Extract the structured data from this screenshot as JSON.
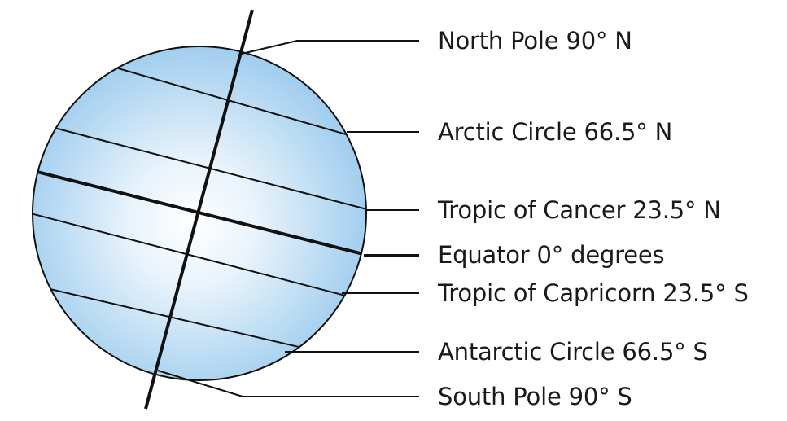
{
  "labels": {
    "north_pole": "North Pole 90° N",
    "arctic_circle": "Arctic Circle 66.5° N",
    "tropic_cancer": "Tropic of Cancer 23.5° N",
    "equator": "Equator 0° degrees",
    "tropic_capricorn": "Tropic of Capricorn 23.5° S",
    "antarctic_circle": "Antarctic Circle 66.5° S",
    "south_pole": "South Pole 90° S"
  },
  "colors": {
    "globe_center": "#ffffff",
    "globe_edge": "#8fc3e8",
    "line": "#111111",
    "text": "#1a1a1a"
  }
}
